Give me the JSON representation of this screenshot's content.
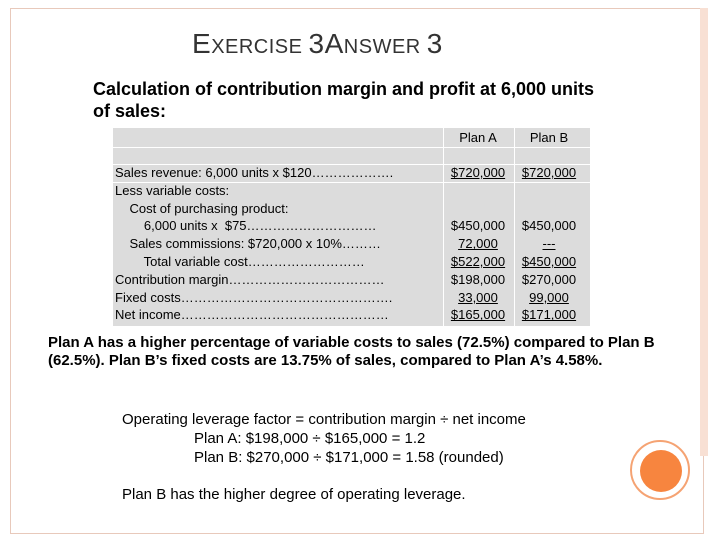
{
  "slide": {
    "title_parts": [
      {
        "text": "E",
        "size": "cap"
      },
      {
        "text": "XERCISE ",
        "size": "sm"
      },
      {
        "text": "3A",
        "size": "cap"
      },
      {
        "text": "NSWER ",
        "size": "sm"
      },
      {
        "text": "3",
        "size": "cap"
      }
    ],
    "heading": "Calculation of contribution margin and profit at 6,000 units of sales:"
  },
  "table": {
    "col_a": "Plan A",
    "col_b": "Plan B",
    "rows": [
      {
        "label": "Sales revenue: 6,000 units x $120……………….",
        "a": "$720,000",
        "b": "$720,000",
        "ua": true,
        "ub": true
      },
      {
        "label": "Less variable costs:",
        "a": "",
        "b": ""
      },
      {
        "label": "    Cost of purchasing product:",
        "a": "",
        "b": ""
      },
      {
        "label": "        6,000 units x  $75…………………………",
        "a": "$450,000",
        "b": "$450,000"
      },
      {
        "label": "    Sales commissions: $720,000 x 10%………",
        "a": "72,000",
        "b": "---",
        "ua": true,
        "ub": true
      },
      {
        "label": "        Total variable cost………………………",
        "a": "$522,000",
        "b": "$450,000",
        "ua": true,
        "ub": true
      },
      {
        "label": "Contribution margin………………………………",
        "a": "$198,000",
        "b": "$270,000"
      },
      {
        "label": "Fixed costs………………………………………….",
        "a": "33,000",
        "b": "99,000",
        "ua": true,
        "ub": true
      },
      {
        "label": "Net income…………………………………………",
        "a": "$165,000",
        "b": "$171,000",
        "ua": true,
        "ub": true
      }
    ]
  },
  "body": {
    "paragraph": "Plan A has a higher percentage of variable costs to sales (72.5%) compared to Plan B (62.5%).  Plan B’s fixed costs are 13.75% of sales, compared to Plan A’s 4.58%.",
    "leverage_line1": "Operating leverage factor = contribution margin ÷ net income",
    "leverage_line2": "Plan A:  $198,000 ÷ $165,000 = 1.2",
    "leverage_line3": "Plan B:  $270,000 ÷ $171,000 = 1.58 (rounded)",
    "conclusion": "Plan B has the higher degree of operating leverage."
  },
  "colors": {
    "accent": "#f7853f",
    "frame": "#e8c9bb",
    "table_bg": "#dcdcdc"
  }
}
